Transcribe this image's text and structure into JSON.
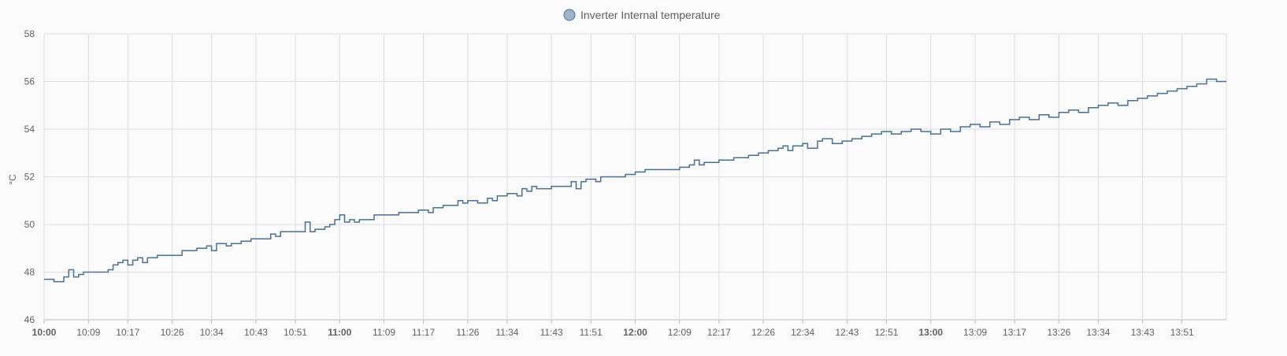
{
  "chart_data": {
    "type": "line",
    "title": "",
    "ylabel": "°C",
    "ylim": [
      46,
      58
    ],
    "yticks": [
      46,
      48,
      50,
      52,
      54,
      56,
      58
    ],
    "x_range": [
      "10:00",
      "14:00"
    ],
    "xticks": [
      {
        "label": "10:00",
        "bold": true
      },
      {
        "label": "10:09",
        "bold": false
      },
      {
        "label": "10:17",
        "bold": false
      },
      {
        "label": "10:26",
        "bold": false
      },
      {
        "label": "10:34",
        "bold": false
      },
      {
        "label": "10:43",
        "bold": false
      },
      {
        "label": "10:51",
        "bold": false
      },
      {
        "label": "11:00",
        "bold": true
      },
      {
        "label": "11:09",
        "bold": false
      },
      {
        "label": "11:17",
        "bold": false
      },
      {
        "label": "11:26",
        "bold": false
      },
      {
        "label": "11:34",
        "bold": false
      },
      {
        "label": "11:43",
        "bold": false
      },
      {
        "label": "11:51",
        "bold": false
      },
      {
        "label": "12:00",
        "bold": true
      },
      {
        "label": "12:09",
        "bold": false
      },
      {
        "label": "12:17",
        "bold": false
      },
      {
        "label": "12:26",
        "bold": false
      },
      {
        "label": "12:34",
        "bold": false
      },
      {
        "label": "12:43",
        "bold": false
      },
      {
        "label": "12:51",
        "bold": false
      },
      {
        "label": "13:00",
        "bold": true
      },
      {
        "label": "13:09",
        "bold": false
      },
      {
        "label": "13:17",
        "bold": false
      },
      {
        "label": "13:26",
        "bold": false
      },
      {
        "label": "13:34",
        "bold": false
      },
      {
        "label": "13:43",
        "bold": false
      },
      {
        "label": "13:51",
        "bold": false
      }
    ],
    "grid": true,
    "legend_position": "top-center",
    "step": true,
    "series": [
      {
        "name": "Inverter Internal temperature",
        "color": "#4a6f94",
        "marker_fill": "#9fb3c8",
        "points": [
          [
            "10:00",
            47.7
          ],
          [
            "10:02",
            47.6
          ],
          [
            "10:04",
            47.8
          ],
          [
            "10:05",
            48.1
          ],
          [
            "10:06",
            47.8
          ],
          [
            "10:07",
            47.9
          ],
          [
            "10:08",
            48.0
          ],
          [
            "10:13",
            48.1
          ],
          [
            "10:14",
            48.3
          ],
          [
            "10:15",
            48.4
          ],
          [
            "10:16",
            48.5
          ],
          [
            "10:17",
            48.3
          ],
          [
            "10:18",
            48.5
          ],
          [
            "10:19",
            48.6
          ],
          [
            "10:20",
            48.4
          ],
          [
            "10:21",
            48.6
          ],
          [
            "10:23",
            48.7
          ],
          [
            "10:28",
            48.9
          ],
          [
            "10:31",
            49.0
          ],
          [
            "10:33",
            49.1
          ],
          [
            "10:34",
            48.9
          ],
          [
            "10:35",
            49.2
          ],
          [
            "10:37",
            49.1
          ],
          [
            "10:38",
            49.2
          ],
          [
            "10:40",
            49.3
          ],
          [
            "10:42",
            49.4
          ],
          [
            "10:46",
            49.6
          ],
          [
            "10:47",
            49.5
          ],
          [
            "10:48",
            49.7
          ],
          [
            "10:52",
            49.7
          ],
          [
            "10:53",
            50.1
          ],
          [
            "10:54",
            49.7
          ],
          [
            "10:55",
            49.8
          ],
          [
            "10:57",
            49.9
          ],
          [
            "10:58",
            50.0
          ],
          [
            "10:59",
            50.2
          ],
          [
            "11:00",
            50.4
          ],
          [
            "11:01",
            50.1
          ],
          [
            "11:02",
            50.2
          ],
          [
            "11:03",
            50.1
          ],
          [
            "11:04",
            50.2
          ],
          [
            "11:07",
            50.4
          ],
          [
            "11:12",
            50.5
          ],
          [
            "11:15",
            50.5
          ],
          [
            "11:16",
            50.6
          ],
          [
            "11:18",
            50.5
          ],
          [
            "11:19",
            50.7
          ],
          [
            "11:21",
            50.8
          ],
          [
            "11:24",
            51.0
          ],
          [
            "11:25",
            50.9
          ],
          [
            "11:26",
            51.0
          ],
          [
            "11:28",
            50.9
          ],
          [
            "11:30",
            51.1
          ],
          [
            "11:31",
            51.0
          ],
          [
            "11:32",
            51.2
          ],
          [
            "11:34",
            51.3
          ],
          [
            "11:36",
            51.2
          ],
          [
            "11:37",
            51.5
          ],
          [
            "11:38",
            51.4
          ],
          [
            "11:39",
            51.6
          ],
          [
            "11:40",
            51.5
          ],
          [
            "11:43",
            51.6
          ],
          [
            "11:47",
            51.8
          ],
          [
            "11:48",
            51.5
          ],
          [
            "11:49",
            51.8
          ],
          [
            "11:50",
            51.9
          ],
          [
            "11:52",
            51.8
          ],
          [
            "11:53",
            52.0
          ],
          [
            "11:57",
            52.0
          ],
          [
            "11:58",
            52.1
          ],
          [
            "12:00",
            52.2
          ],
          [
            "12:02",
            52.3
          ],
          [
            "12:09",
            52.4
          ],
          [
            "12:11",
            52.5
          ],
          [
            "12:12",
            52.7
          ],
          [
            "12:13",
            52.5
          ],
          [
            "12:14",
            52.6
          ],
          [
            "12:17",
            52.7
          ],
          [
            "12:20",
            52.8
          ],
          [
            "12:23",
            52.9
          ],
          [
            "12:25",
            53.0
          ],
          [
            "12:27",
            53.1
          ],
          [
            "12:29",
            53.2
          ],
          [
            "12:30",
            53.3
          ],
          [
            "12:31",
            53.1
          ],
          [
            "12:32",
            53.3
          ],
          [
            "12:34",
            53.4
          ],
          [
            "12:35",
            53.2
          ],
          [
            "12:37",
            53.5
          ],
          [
            "12:38",
            53.6
          ],
          [
            "12:40",
            53.4
          ],
          [
            "12:42",
            53.5
          ],
          [
            "12:44",
            53.6
          ],
          [
            "12:46",
            53.7
          ],
          [
            "12:48",
            53.8
          ],
          [
            "12:50",
            53.9
          ],
          [
            "12:52",
            53.8
          ],
          [
            "12:54",
            53.9
          ],
          [
            "12:56",
            54.0
          ],
          [
            "12:58",
            53.9
          ],
          [
            "13:00",
            53.8
          ],
          [
            "13:02",
            54.0
          ],
          [
            "13:04",
            53.9
          ],
          [
            "13:06",
            54.1
          ],
          [
            "13:08",
            54.2
          ],
          [
            "13:10",
            54.1
          ],
          [
            "13:12",
            54.3
          ],
          [
            "13:14",
            54.2
          ],
          [
            "13:16",
            54.4
          ],
          [
            "13:18",
            54.5
          ],
          [
            "13:20",
            54.4
          ],
          [
            "13:22",
            54.6
          ],
          [
            "13:24",
            54.5
          ],
          [
            "13:26",
            54.7
          ],
          [
            "13:28",
            54.8
          ],
          [
            "13:30",
            54.7
          ],
          [
            "13:32",
            54.9
          ],
          [
            "13:34",
            55.0
          ],
          [
            "13:36",
            55.1
          ],
          [
            "13:38",
            55.0
          ],
          [
            "13:40",
            55.2
          ],
          [
            "13:42",
            55.3
          ],
          [
            "13:44",
            55.4
          ],
          [
            "13:46",
            55.5
          ],
          [
            "13:48",
            55.6
          ],
          [
            "13:50",
            55.7
          ],
          [
            "13:52",
            55.8
          ],
          [
            "13:54",
            55.9
          ],
          [
            "13:56",
            56.1
          ],
          [
            "13:58",
            56.0
          ],
          [
            "14:00",
            56.0
          ]
        ]
      }
    ]
  }
}
